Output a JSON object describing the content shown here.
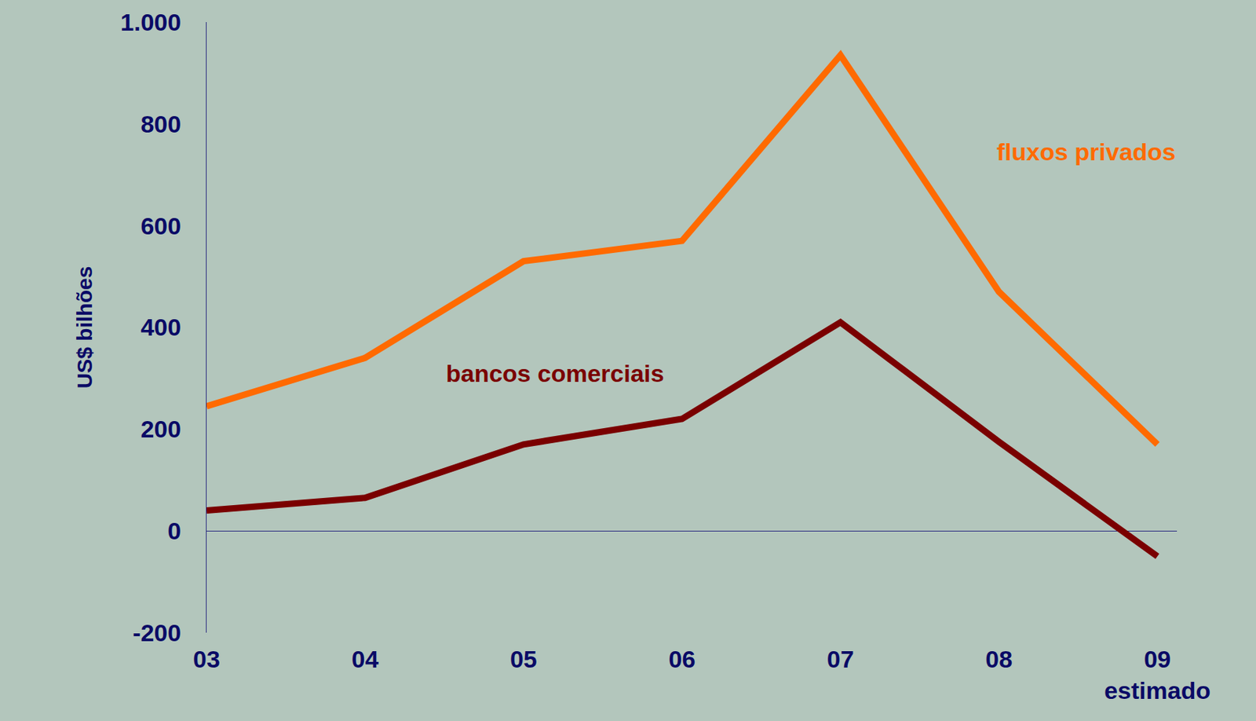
{
  "chart_data": {
    "type": "line",
    "categories": [
      "03",
      "04",
      "05",
      "06",
      "07",
      "08",
      "09\nestimado"
    ],
    "y_label": "US$ bilhões",
    "series": [
      {
        "name": "fluxos privados",
        "color": "#ff6a00",
        "values": [
          245,
          340,
          530,
          570,
          935,
          470,
          170
        ]
      },
      {
        "name": "bancos comerciais",
        "color": "#7a0000",
        "values": [
          40,
          65,
          170,
          220,
          410,
          175,
          -50
        ]
      }
    ],
    "ylim": [
      -200,
      1000
    ],
    "yticks": [
      -200,
      0,
      200,
      400,
      600,
      800,
      {
        "value": 1000,
        "label": "1.000"
      }
    ],
    "grid": false
  }
}
